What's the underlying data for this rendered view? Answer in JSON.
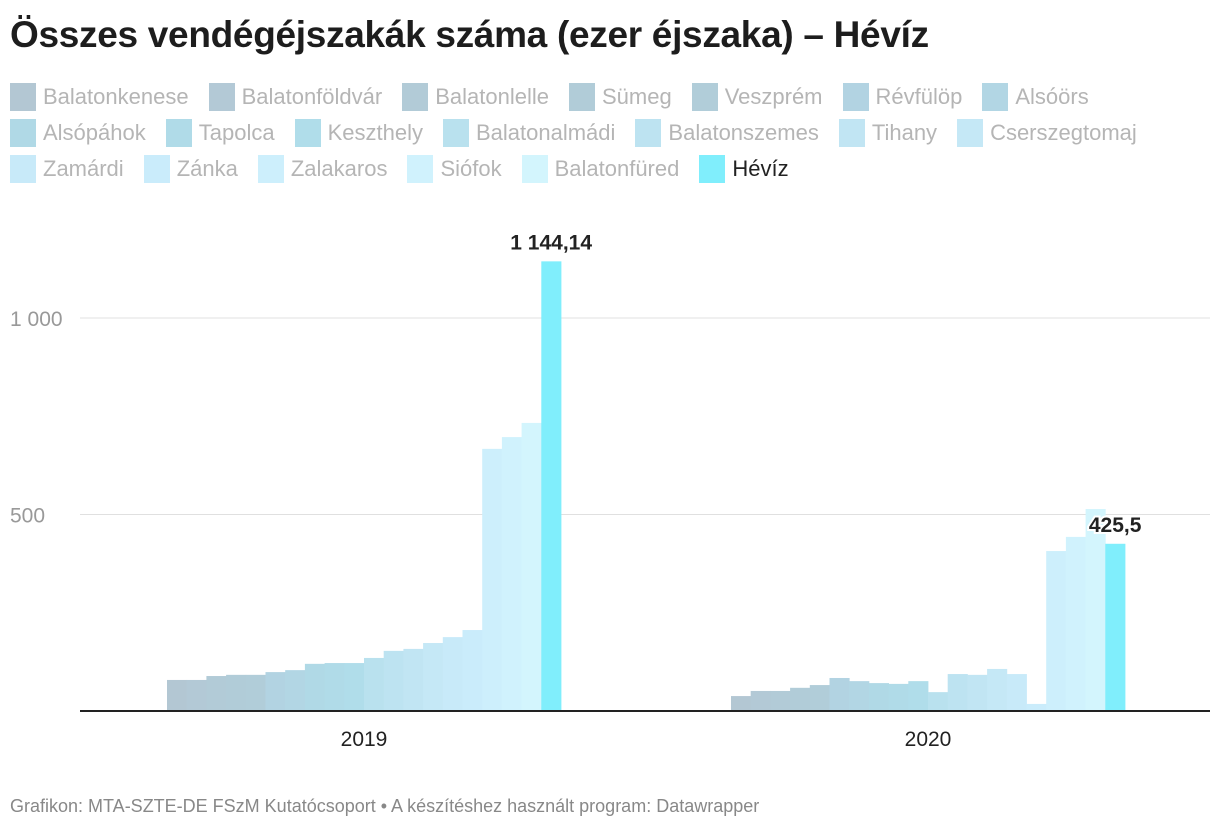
{
  "title": "Összes vendégéjszakák száma (ezer éjszaka) – Hévíz",
  "footer": "Grafikon: MTA-SZTE-DE FSzM Kutatócsoport • A készítéshez használt program: Datawrapper",
  "chart_data": {
    "type": "bar",
    "categories": [
      "2019",
      "2020"
    ],
    "ylim": [
      0,
      1150
    ],
    "yticks": [
      {
        "value": 500,
        "label": "500"
      },
      {
        "value": 1000,
        "label": "1 000"
      }
    ],
    "grid": true,
    "legend_placement": "top",
    "highlight": "Hévíz",
    "series": [
      {
        "name": "Balatonkenese",
        "color": "#b3c7d3",
        "values": [
          79,
          38
        ]
      },
      {
        "name": "Balatonföldvár",
        "color": "#b3c9d6",
        "values": [
          79,
          51
        ]
      },
      {
        "name": "Balatonlelle",
        "color": "#b2cbd7",
        "values": [
          89,
          51
        ]
      },
      {
        "name": "Sümeg",
        "color": "#b1ccd8",
        "values": [
          92,
          59
        ]
      },
      {
        "name": "Veszprém",
        "color": "#b1cdd9",
        "values": [
          92,
          66
        ]
      },
      {
        "name": "Révfülöp",
        "color": "#b2d3e2",
        "values": [
          99,
          84
        ]
      },
      {
        "name": "Alsóörs",
        "color": "#b2d6e4",
        "values": [
          104,
          76
        ]
      },
      {
        "name": "Alsópáhok",
        "color": "#b0d9e6",
        "values": [
          120,
          71
        ]
      },
      {
        "name": "Tapolca",
        "color": "#b0dbe8",
        "values": [
          122,
          69
        ]
      },
      {
        "name": "Keszthely",
        "color": "#b0ddea",
        "values": [
          122,
          76
        ]
      },
      {
        "name": "Balatonalmádi",
        "color": "#b9e1ee",
        "values": [
          135,
          48
        ]
      },
      {
        "name": "Balatonszemes",
        "color": "#bde3f1",
        "values": [
          153,
          94
        ]
      },
      {
        "name": "Tihany",
        "color": "#c1e5f3",
        "values": [
          158,
          92
        ]
      },
      {
        "name": "Cserszegtomaj",
        "color": "#c5e8f6",
        "values": [
          173,
          107
        ]
      },
      {
        "name": "Zamárdi",
        "color": "#c8eaf9",
        "values": [
          188,
          94
        ]
      },
      {
        "name": "Zánka",
        "color": "#caecfb",
        "values": [
          206,
          18
        ]
      },
      {
        "name": "Zalakaros",
        "color": "#cdeffc",
        "values": [
          667,
          407
        ]
      },
      {
        "name": "Siófok",
        "color": "#d0f2fd",
        "values": [
          697,
          443
        ]
      },
      {
        "name": "Balatonfüred",
        "color": "#d3f5fd",
        "values": [
          733,
          514
        ]
      },
      {
        "name": "Hévíz",
        "color": "#80eefc",
        "values": [
          1144.14,
          425.5
        ],
        "labels": [
          "1 144,14",
          "425,5"
        ]
      }
    ]
  }
}
